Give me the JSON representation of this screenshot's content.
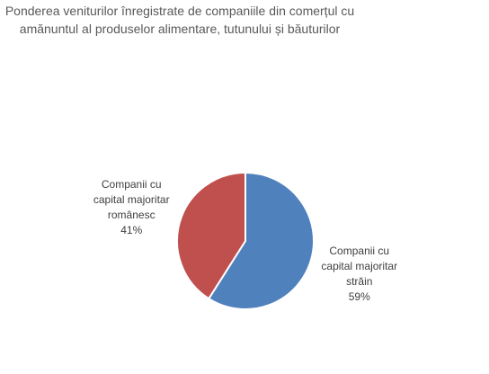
{
  "chart_data": {
    "type": "pie",
    "title": "Ponderea veniturilor înregistrate de companiile din comerțul cu amănuntul al produselor alimentare, tutunului și băuturilor",
    "categories": [
      "Companii cu capital majoritar străin",
      "Companii cu capital majoritar românesc"
    ],
    "values": [
      59,
      41
    ],
    "value_labels": [
      "59%",
      "41%"
    ],
    "colors": [
      "#4f81bd",
      "#c0504d"
    ]
  }
}
